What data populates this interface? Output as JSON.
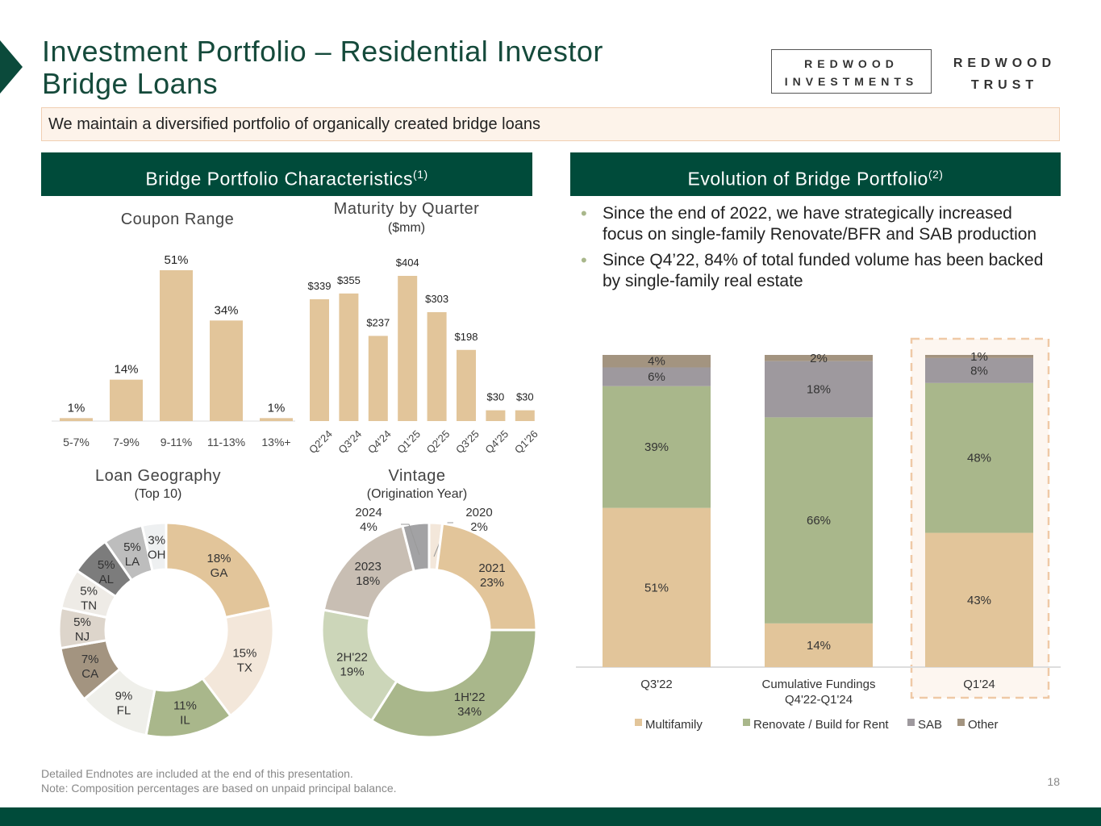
{
  "header": {
    "title_line1": "Investment Portfolio – Residential Investor",
    "title_line2": "Bridge Loans",
    "logo_investments": [
      "REDWOOD",
      "INVESTMENTS"
    ],
    "logo_trust": [
      "REDWOOD",
      "TRUST"
    ]
  },
  "subtitle": "We maintain a diversified portfolio of organically created bridge loans",
  "sections": {
    "left": {
      "label": "Bridge Portfolio Characteristics",
      "sup": "(1)"
    },
    "right": {
      "label": "Evolution of Bridge Portfolio",
      "sup": "(2)"
    }
  },
  "bullets": [
    "Since the end of 2022, we have strategically increased focus on single-family Renovate/BFR and SAB production",
    "Since Q4’22, 84% of total funded volume has been backed by single-family real estate"
  ],
  "footer": {
    "line1": "Detailed Endnotes are included at the end of this presentation.",
    "line2": "Note: Composition percentages are based on unpaid principal balance.",
    "page": "18"
  },
  "colors": {
    "brand": "#004b3a",
    "multifamily": "#e2c59a",
    "renovate": "#a9b78b",
    "sab": "#9e999e",
    "other": "#a39480"
  },
  "chart_data": [
    {
      "id": "coupon",
      "type": "bar",
      "title": "Coupon Range",
      "categories": [
        "5-7%",
        "7-9%",
        "9-11%",
        "11-13%",
        "13%+"
      ],
      "values": [
        1,
        14,
        51,
        34,
        1
      ],
      "labels": [
        "1%",
        "14%",
        "51%",
        "34%",
        "1%"
      ],
      "unit": "%",
      "color": "#e2c59a",
      "ylim": [
        0,
        51
      ]
    },
    {
      "id": "maturity",
      "type": "bar",
      "title": "Maturity by Quarter",
      "subtitle": "($mm)",
      "categories": [
        "Q2'24",
        "Q3'24",
        "Q4'24",
        "Q1'25",
        "Q2'25",
        "Q3'25",
        "Q4'25",
        "Q1'26"
      ],
      "values": [
        339,
        355,
        237,
        404,
        303,
        198,
        30,
        30
      ],
      "labels": [
        "$339",
        "$355",
        "$237",
        "$404",
        "$303",
        "$198",
        "$30",
        "$30"
      ],
      "color": "#e2c59a",
      "ylim": [
        0,
        404
      ]
    },
    {
      "id": "geography",
      "type": "pie",
      "title": "Loan Geography",
      "subtitle": "(Top 10)",
      "slices": [
        {
          "name": "GA",
          "value": 18,
          "label": "18%",
          "color": "#e2c59a"
        },
        {
          "name": "TX",
          "value": 15,
          "label": "15%",
          "color": "#f3e7da"
        },
        {
          "name": "IL",
          "value": 11,
          "label": "11%",
          "color": "#a9b78b"
        },
        {
          "name": "FL",
          "value": 9,
          "label": "9%",
          "color": "#efefea"
        },
        {
          "name": "CA",
          "value": 7,
          "label": "7%",
          "color": "#a39480"
        },
        {
          "name": "NJ",
          "value": 5,
          "label": "5%",
          "color": "#ddd5cb"
        },
        {
          "name": "TN",
          "value": 5,
          "label": "5%",
          "color": "#eeebe6"
        },
        {
          "name": "AL",
          "value": 5,
          "label": "5%",
          "color": "#7c7c7c"
        },
        {
          "name": "LA",
          "value": 5,
          "label": "5%",
          "color": "#bdbdbd"
        },
        {
          "name": "OH",
          "value": 3,
          "label": "3%",
          "color": "#eef0f1"
        }
      ]
    },
    {
      "id": "vintage",
      "type": "pie",
      "title": "Vintage",
      "subtitle": "(Origination Year)",
      "slices": [
        {
          "name": "2020",
          "value": 2,
          "label": "2%",
          "color": "#f3e7da"
        },
        {
          "name": "2021",
          "value": 23,
          "label": "23%",
          "color": "#e2c59a"
        },
        {
          "name": "1H'22",
          "value": 34,
          "label": "34%",
          "color": "#a9b78b"
        },
        {
          "name": "2H'22",
          "value": 19,
          "label": "19%",
          "color": "#ccd6b9"
        },
        {
          "name": "2023",
          "value": 18,
          "label": "18%",
          "color": "#c8beb3"
        },
        {
          "name": "2024",
          "value": 4,
          "label": "4%",
          "color": "#a2a2a4"
        }
      ]
    },
    {
      "id": "evolution",
      "type": "bar",
      "stacked": true,
      "categories": [
        "Q3'22",
        "Cumulative Fundings\nQ4'22-Q1'24",
        "Q1'24"
      ],
      "highlight": "Q1'24",
      "legend": "bottom",
      "ylim": [
        0,
        100
      ],
      "series": [
        {
          "name": "Multifamily",
          "values": [
            51,
            14,
            43
          ],
          "color": "#e2c59a"
        },
        {
          "name": "Renovate / Build for Rent",
          "values": [
            39,
            66,
            48
          ],
          "color": "#a9b78b"
        },
        {
          "name": "SAB",
          "values": [
            6,
            18,
            8
          ],
          "color": "#9e999e"
        },
        {
          "name": "Other",
          "values": [
            4,
            2,
            1
          ],
          "color": "#a39480"
        }
      ]
    }
  ]
}
